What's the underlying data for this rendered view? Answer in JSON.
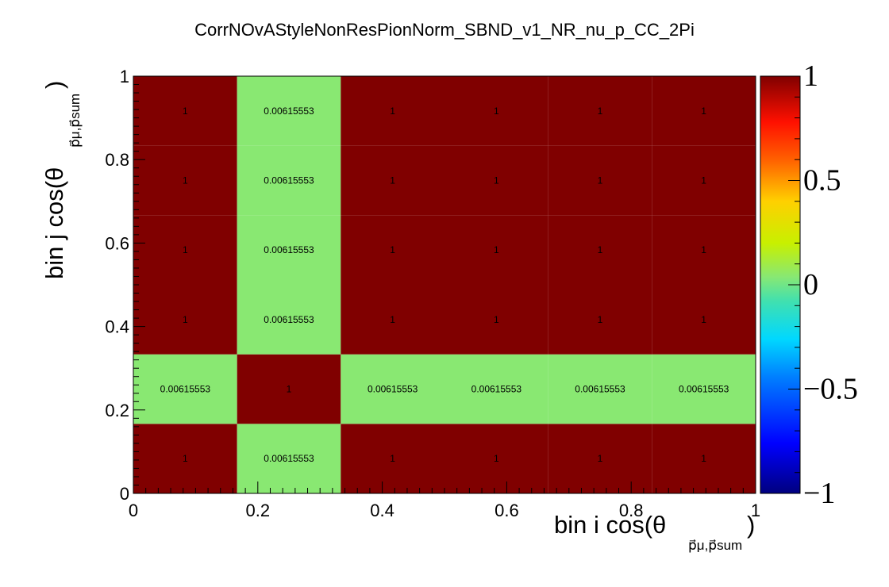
{
  "chart_data": {
    "type": "heatmap",
    "title": "CorrNOvAStyleNonResPionNorm_SBND_v1_NR_nu_p_CC_2Pi",
    "xlabel": "bin i cos(θ",
    "xlabel_sub": "p⃗μ,p⃗sum",
    "ylabel": "bin j cos(θ",
    "ylabel_sub": "p⃗μ,p⃗sum",
    "x_edges": [
      0,
      0.1667,
      0.3333,
      0.5,
      0.6667,
      0.8333,
      1.0
    ],
    "y_edges": [
      0,
      0.1667,
      0.3333,
      0.5,
      0.6667,
      0.8333,
      1.0
    ],
    "xlim": [
      0,
      1
    ],
    "ylim": [
      0,
      1
    ],
    "x_ticks": [
      "0",
      "0.2",
      "0.4",
      "0.6",
      "0.8",
      "1"
    ],
    "x_tick_values": [
      0,
      0.2,
      0.4,
      0.6,
      0.8,
      1.0
    ],
    "y_ticks": [
      "0",
      "0.2",
      "0.4",
      "0.6",
      "0.8",
      "1"
    ],
    "y_tick_values": [
      0,
      0.2,
      0.4,
      0.6,
      0.8,
      1.0
    ],
    "values": [
      [
        1,
        0.00615553,
        1,
        1,
        1,
        1
      ],
      [
        0.00615553,
        1,
        0.00615553,
        0.00615553,
        0.00615553,
        0.00615553
      ],
      [
        1,
        0.00615553,
        1,
        1,
        1,
        1
      ],
      [
        1,
        0.00615553,
        1,
        1,
        1,
        1
      ],
      [
        1,
        0.00615553,
        1,
        1,
        1,
        1
      ],
      [
        1,
        0.00615553,
        1,
        1,
        1,
        1
      ]
    ],
    "cell_labels": [
      [
        "1",
        "0.00615553",
        "1",
        "1",
        "1",
        "1"
      ],
      [
        "0.00615553",
        "1",
        "0.00615553",
        "0.00615553",
        "0.00615553",
        "0.00615553"
      ],
      [
        "1",
        "0.00615553",
        "1",
        "1",
        "1",
        "1"
      ],
      [
        "1",
        "0.00615553",
        "1",
        "1",
        "1",
        "1"
      ],
      [
        "1",
        "0.00615553",
        "1",
        "1",
        "1",
        "1"
      ],
      [
        "1",
        "0.00615553",
        "1",
        "1",
        "1",
        "1"
      ]
    ],
    "colorbar": {
      "range": [
        -1,
        1
      ],
      "ticks": [
        "−1",
        "−0.5",
        "0",
        "0.5",
        "1"
      ],
      "tick_values": [
        -1,
        -0.5,
        0,
        0.5,
        1
      ]
    },
    "grid": false,
    "colors": {
      "high": "#800000",
      "near_zero": "#89e872"
    }
  }
}
